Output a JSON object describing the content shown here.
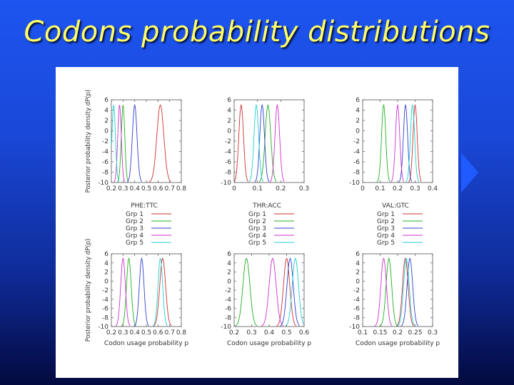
{
  "slide": {
    "title": "Codons probability distributions",
    "colors": {
      "background_top": "#1d55f0",
      "background_bottom": "#030a40",
      "title": "#ffff66",
      "accent": "#1f5bff"
    }
  },
  "chart_data": {
    "type": "line",
    "ylabel": "Posterior probability density dP(p)",
    "xlabel": "Codon usage probability p",
    "ylim": [
      -10,
      6
    ],
    "yticks": [
      "6",
      "4",
      "2",
      "0",
      "-2",
      "-4",
      "-6",
      "-8",
      "-10"
    ],
    "legend_entries": [
      "Grp 1",
      "Grp 2",
      "Grp 3",
      "Grp 4",
      "Grp 5"
    ],
    "series_colors": [
      "#d03030",
      "#20b020",
      "#3040d0",
      "#d030d0",
      "#20d0d0"
    ],
    "panels": [
      {
        "name": "PHE:TTC",
        "xlim": [
          0.2,
          0.8
        ],
        "xticks": [
          "0.2",
          "0.3",
          "0.4",
          "0.5",
          "0.6",
          "0.7",
          "0.8"
        ],
        "show_ylabel": true,
        "show_xlabel": false,
        "peaks": [
          [
            0.62,
            0.03
          ],
          [
            0.3,
            0.015
          ],
          [
            0.4,
            0.02
          ],
          [
            0.27,
            0.015
          ],
          [
            0.22,
            0.015
          ]
        ]
      },
      {
        "name": "THR:ACC",
        "xlim": [
          0,
          0.3
        ],
        "xticks": [
          "0",
          "0.1",
          "0.2",
          "0.3"
        ],
        "show_ylabel": false,
        "show_xlabel": false,
        "peaks": [
          [
            0.03,
            0.01
          ],
          [
            0.145,
            0.012
          ],
          [
            0.12,
            0.01
          ],
          [
            0.185,
            0.01
          ],
          [
            0.095,
            0.01
          ]
        ]
      },
      {
        "name": "VAL:GTC",
        "xlim": [
          0,
          0.4
        ],
        "xticks": [
          "0",
          "0.1",
          "0.2",
          "0.3",
          "0.4"
        ],
        "show_ylabel": false,
        "show_xlabel": false,
        "peaks": [
          [
            0.3,
            0.012
          ],
          [
            0.12,
            0.012
          ],
          [
            0.245,
            0.012
          ],
          [
            0.2,
            0.012
          ],
          [
            0.285,
            0.012
          ]
        ]
      },
      {
        "name": "",
        "xlim": [
          0.2,
          0.8
        ],
        "xticks": [
          "0.2",
          "0.3",
          "0.4",
          "0.5",
          "0.6",
          "0.7",
          "0.8"
        ],
        "show_ylabel": true,
        "show_xlabel": true,
        "peaks": [
          [
            0.64,
            0.025
          ],
          [
            0.35,
            0.02
          ],
          [
            0.46,
            0.02
          ],
          [
            0.3,
            0.02
          ],
          [
            0.62,
            0.02
          ]
        ]
      },
      {
        "name": "",
        "xlim": [
          0.2,
          0.6
        ],
        "xticks": [
          "0.2",
          "0.3",
          "0.4",
          "0.5",
          "0.6"
        ],
        "show_ylabel": false,
        "show_xlabel": true,
        "peaks": [
          [
            0.5,
            0.018
          ],
          [
            0.27,
            0.02
          ],
          [
            0.52,
            0.018
          ],
          [
            0.42,
            0.02
          ],
          [
            0.55,
            0.018
          ]
        ]
      },
      {
        "name": "",
        "xlim": [
          0.1,
          0.3
        ],
        "xticks": [
          "0.1",
          "0.15",
          "0.2",
          "0.25",
          "0.3"
        ],
        "show_ylabel": false,
        "show_xlabel": true,
        "peaks": [
          [
            0.222,
            0.008
          ],
          [
            0.175,
            0.008
          ],
          [
            0.235,
            0.008
          ],
          [
            0.16,
            0.008
          ],
          [
            0.225,
            0.008
          ]
        ]
      }
    ]
  }
}
